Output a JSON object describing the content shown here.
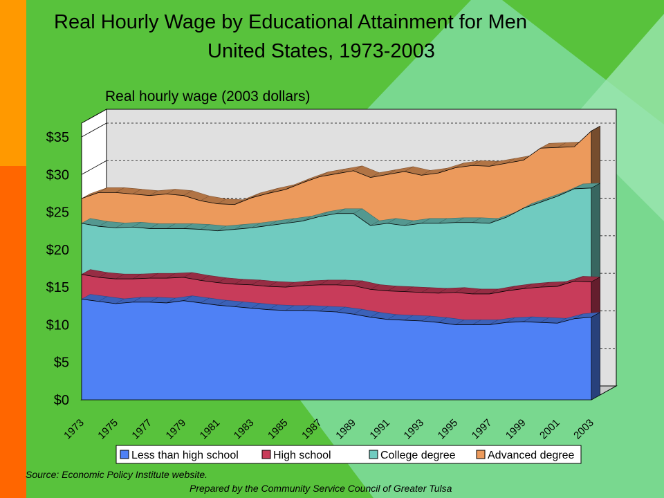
{
  "header": {
    "title": "Real Hourly Wage by Educational Attainment for Men",
    "subtitle": "United States, 1973-2003"
  },
  "footer": {
    "source": "Source:  Economic Policy Institute website.",
    "credit": "Prepared by the Community Service Council of Greater Tulsa"
  },
  "colors": {
    "background": "#58c23c",
    "left_strip_top": "#ff9900",
    "left_strip_bottom": "#ff6600",
    "plot_background": "#e0e0e0"
  },
  "chart_data": {
    "type": "area",
    "stacked": true,
    "three_d": true,
    "ylabel": "Real hourly wage (2003 dollars)",
    "ylim": [
      0,
      35
    ],
    "ytick_values": [
      0,
      5,
      10,
      15,
      20,
      25,
      30,
      35
    ],
    "ytick_labels": [
      "$0",
      "$5",
      "$10",
      "$15",
      "$20",
      "$25",
      "$30",
      "$35"
    ],
    "x": [
      1973,
      1974,
      1975,
      1976,
      1977,
      1978,
      1979,
      1980,
      1981,
      1982,
      1983,
      1984,
      1985,
      1986,
      1987,
      1988,
      1989,
      1990,
      1991,
      1992,
      1993,
      1994,
      1995,
      1996,
      1997,
      1998,
      1999,
      2000,
      2001,
      2002,
      2003
    ],
    "xtick_labels": [
      "1973",
      "1975",
      "1977",
      "1979",
      "1981",
      "1983",
      "1985",
      "1987",
      "1989",
      "1991",
      "1993",
      "1995",
      "1997",
      "1999",
      "2001",
      "2003"
    ],
    "legend_position": "bottom",
    "series": [
      {
        "name": "Less than high school",
        "color": "#4f81f5",
        "values": [
          13.4,
          13.1,
          12.8,
          13.0,
          13.0,
          12.9,
          13.2,
          12.9,
          12.6,
          12.4,
          12.2,
          12.0,
          11.9,
          11.9,
          11.8,
          11.7,
          11.4,
          11.0,
          10.7,
          10.6,
          10.5,
          10.3,
          10.0,
          10.0,
          10.0,
          10.3,
          10.4,
          10.3,
          10.2,
          10.8,
          11.0
        ]
      },
      {
        "name": "High school",
        "color": "#c83c5a",
        "values": [
          16.7,
          16.3,
          16.1,
          16.1,
          16.2,
          16.2,
          16.3,
          15.9,
          15.6,
          15.4,
          15.3,
          15.1,
          15.0,
          15.2,
          15.3,
          15.3,
          15.2,
          14.7,
          14.5,
          14.4,
          14.3,
          14.2,
          14.3,
          14.1,
          14.1,
          14.5,
          14.8,
          15.0,
          15.1,
          15.8,
          15.7
        ]
      },
      {
        "name": "College degree",
        "color": "#70cbc0",
        "values": [
          23.5,
          23.1,
          22.9,
          23.0,
          22.8,
          22.8,
          22.8,
          22.7,
          22.5,
          22.7,
          22.9,
          23.2,
          23.5,
          23.8,
          24.4,
          24.8,
          24.8,
          23.2,
          23.5,
          23.2,
          23.5,
          23.5,
          23.6,
          23.6,
          23.5,
          24.3,
          25.5,
          26.3,
          27.1,
          28.1,
          28.2
        ]
      },
      {
        "name": "Advanced degree",
        "color": "#ec9a5c",
        "values": [
          26.8,
          27.6,
          27.6,
          27.4,
          27.2,
          27.4,
          27.2,
          26.5,
          26.1,
          26.0,
          26.9,
          27.5,
          28.0,
          28.9,
          29.7,
          30.1,
          30.5,
          29.6,
          30.0,
          30.4,
          29.9,
          30.2,
          30.9,
          31.2,
          31.1,
          31.5,
          31.9,
          33.5,
          33.6,
          33.7,
          35.8
        ]
      }
    ]
  }
}
